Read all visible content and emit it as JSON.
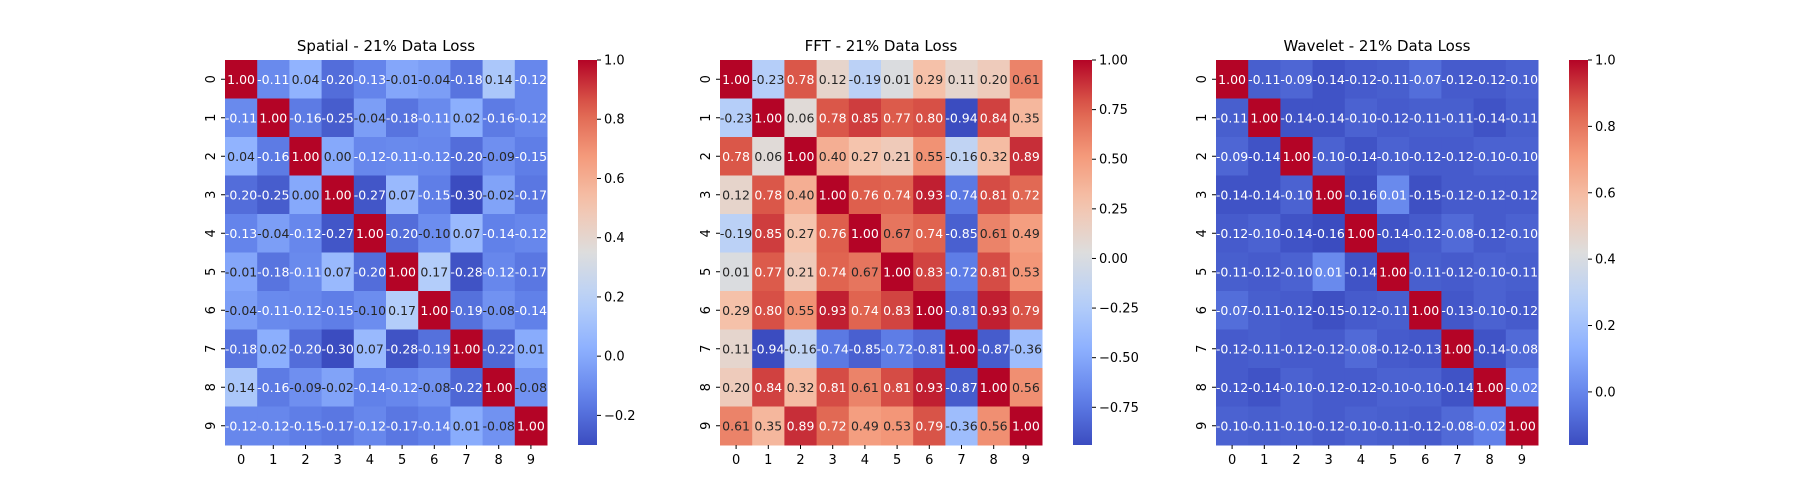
{
  "chart_data": [
    {
      "type": "heatmap",
      "title": "Spatial - 21% Data Loss",
      "xlabel": "",
      "ylabel": "",
      "x_categories": [
        "0",
        "1",
        "2",
        "3",
        "4",
        "5",
        "6",
        "7",
        "8",
        "9"
      ],
      "y_categories": [
        "0",
        "1",
        "2",
        "3",
        "4",
        "5",
        "6",
        "7",
        "8",
        "9"
      ],
      "colormap": "coolwarm",
      "vmin": -0.3,
      "vmax": 1.0,
      "colorbar_ticks": [
        -0.2,
        0.0,
        0.2,
        0.4,
        0.6,
        0.8,
        1.0
      ],
      "colorbar_tick_labels": [
        "−0.2",
        "0.0",
        "0.2",
        "0.4",
        "0.6",
        "0.8",
        "1.0"
      ],
      "values": [
        [
          1.0,
          -0.11,
          0.04,
          -0.2,
          -0.13,
          -0.01,
          -0.04,
          -0.18,
          0.14,
          -0.12
        ],
        [
          -0.11,
          1.0,
          -0.16,
          -0.25,
          -0.04,
          -0.18,
          -0.11,
          0.02,
          -0.16,
          -0.12
        ],
        [
          0.04,
          -0.16,
          1.0,
          0.0,
          -0.12,
          -0.11,
          -0.12,
          -0.2,
          -0.09,
          -0.15
        ],
        [
          -0.2,
          -0.25,
          0.0,
          1.0,
          -0.27,
          0.07,
          -0.15,
          -0.3,
          -0.02,
          -0.17
        ],
        [
          -0.13,
          -0.04,
          -0.12,
          -0.27,
          1.0,
          -0.2,
          -0.1,
          0.07,
          -0.14,
          -0.12
        ],
        [
          -0.01,
          -0.18,
          -0.11,
          0.07,
          -0.2,
          1.0,
          0.17,
          -0.28,
          -0.12,
          -0.17
        ],
        [
          -0.04,
          -0.11,
          -0.12,
          -0.15,
          -0.1,
          0.17,
          1.0,
          -0.19,
          -0.08,
          -0.14
        ],
        [
          -0.18,
          0.02,
          -0.2,
          -0.3,
          0.07,
          -0.28,
          -0.19,
          1.0,
          -0.22,
          0.01
        ],
        [
          0.14,
          -0.16,
          -0.09,
          -0.02,
          -0.14,
          -0.12,
          -0.08,
          -0.22,
          1.0,
          -0.08
        ],
        [
          -0.12,
          -0.12,
          -0.15,
          -0.17,
          -0.12,
          -0.17,
          -0.14,
          0.01,
          -0.08,
          1.0
        ]
      ]
    },
    {
      "type": "heatmap",
      "title": "FFT - 21% Data Loss",
      "xlabel": "",
      "ylabel": "",
      "x_categories": [
        "0",
        "1",
        "2",
        "3",
        "4",
        "5",
        "6",
        "7",
        "8",
        "9"
      ],
      "y_categories": [
        "0",
        "1",
        "2",
        "3",
        "4",
        "5",
        "6",
        "7",
        "8",
        "9"
      ],
      "colormap": "coolwarm",
      "vmin": -0.94,
      "vmax": 1.0,
      "colorbar_ticks": [
        -0.75,
        -0.5,
        -0.25,
        0.0,
        0.25,
        0.5,
        0.75,
        1.0
      ],
      "colorbar_tick_labels": [
        "−0.75",
        "−0.50",
        "−0.25",
        "0.00",
        "0.25",
        "0.50",
        "0.75",
        "1.00"
      ],
      "values": [
        [
          1.0,
          -0.23,
          0.78,
          0.12,
          -0.19,
          0.01,
          0.29,
          0.11,
          0.2,
          0.61
        ],
        [
          -0.23,
          1.0,
          0.06,
          0.78,
          0.85,
          0.77,
          0.8,
          -0.94,
          0.84,
          0.35
        ],
        [
          0.78,
          0.06,
          1.0,
          0.4,
          0.27,
          0.21,
          0.55,
          -0.16,
          0.32,
          0.89
        ],
        [
          0.12,
          0.78,
          0.4,
          1.0,
          0.76,
          0.74,
          0.93,
          -0.74,
          0.81,
          0.72
        ],
        [
          -0.19,
          0.85,
          0.27,
          0.76,
          1.0,
          0.67,
          0.74,
          -0.85,
          0.61,
          0.49
        ],
        [
          0.01,
          0.77,
          0.21,
          0.74,
          0.67,
          1.0,
          0.83,
          -0.72,
          0.81,
          0.53
        ],
        [
          0.29,
          0.8,
          0.55,
          0.93,
          0.74,
          0.83,
          1.0,
          -0.81,
          0.93,
          0.79
        ],
        [
          0.11,
          -0.94,
          -0.16,
          -0.74,
          -0.85,
          -0.72,
          -0.81,
          1.0,
          -0.87,
          -0.36
        ],
        [
          0.2,
          0.84,
          0.32,
          0.81,
          0.61,
          0.81,
          0.93,
          -0.87,
          1.0,
          0.56
        ],
        [
          0.61,
          0.35,
          0.89,
          0.72,
          0.49,
          0.53,
          0.79,
          -0.36,
          0.56,
          1.0
        ]
      ]
    },
    {
      "type": "heatmap",
      "title": "Wavelet - 21% Data Loss",
      "xlabel": "",
      "ylabel": "",
      "x_categories": [
        "0",
        "1",
        "2",
        "3",
        "4",
        "5",
        "6",
        "7",
        "8",
        "9"
      ],
      "y_categories": [
        "0",
        "1",
        "2",
        "3",
        "4",
        "5",
        "6",
        "7",
        "8",
        "9"
      ],
      "colormap": "coolwarm",
      "vmin": -0.16,
      "vmax": 1.0,
      "colorbar_ticks": [
        0.0,
        0.2,
        0.4,
        0.6,
        0.8,
        1.0
      ],
      "colorbar_tick_labels": [
        "0.0",
        "0.2",
        "0.4",
        "0.6",
        "0.8",
        "1.0"
      ],
      "values": [
        [
          1.0,
          -0.11,
          -0.09,
          -0.14,
          -0.12,
          -0.11,
          -0.07,
          -0.12,
          -0.12,
          -0.1
        ],
        [
          -0.11,
          1.0,
          -0.14,
          -0.14,
          -0.1,
          -0.12,
          -0.11,
          -0.11,
          -0.14,
          -0.11
        ],
        [
          -0.09,
          -0.14,
          1.0,
          -0.1,
          -0.14,
          -0.1,
          -0.12,
          -0.12,
          -0.1,
          -0.1
        ],
        [
          -0.14,
          -0.14,
          -0.1,
          1.0,
          -0.16,
          0.01,
          -0.15,
          -0.12,
          -0.12,
          -0.12
        ],
        [
          -0.12,
          -0.1,
          -0.14,
          -0.16,
          1.0,
          -0.14,
          -0.12,
          -0.08,
          -0.12,
          -0.1
        ],
        [
          -0.11,
          -0.12,
          -0.1,
          0.01,
          -0.14,
          1.0,
          -0.11,
          -0.12,
          -0.1,
          -0.11
        ],
        [
          -0.07,
          -0.11,
          -0.12,
          -0.15,
          -0.12,
          -0.11,
          1.0,
          -0.13,
          -0.1,
          -0.12
        ],
        [
          -0.12,
          -0.11,
          -0.12,
          -0.12,
          -0.08,
          -0.12,
          -0.13,
          1.0,
          -0.14,
          -0.08
        ],
        [
          -0.12,
          -0.14,
          -0.1,
          -0.12,
          -0.12,
          -0.1,
          -0.1,
          -0.14,
          1.0,
          -0.02
        ],
        [
          -0.1,
          -0.11,
          -0.1,
          -0.12,
          -0.1,
          -0.11,
          -0.12,
          -0.08,
          -0.02,
          1.0
        ]
      ]
    }
  ]
}
